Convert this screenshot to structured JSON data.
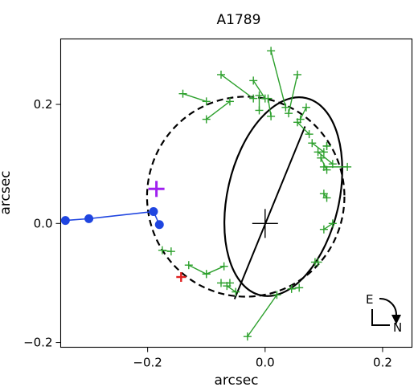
{
  "chart_data": {
    "type": "scatter",
    "title": "A1789",
    "xlabel": "arcsec",
    "ylabel": "arcsec",
    "xlim": [
      -0.348,
      0.25
    ],
    "ylim": [
      -0.208,
      0.31
    ],
    "x_ticks": [
      -0.2,
      0.0,
      0.2
    ],
    "y_ticks": [
      -0.2,
      0.0,
      0.2
    ],
    "x_tick_labels": [
      "−0.2",
      "0.0",
      "0.2"
    ],
    "y_tick_labels": [
      "−0.2",
      "0.0",
      "0.2"
    ],
    "grid": false,
    "compass": {
      "east_label": "E",
      "north_label": "N"
    },
    "colors": {
      "model_points": "#2ca02c",
      "blue_series": "#1f45e0",
      "purple_marker": "#a020f0",
      "red_marker": "#e02020",
      "curves": "#000000"
    },
    "solid_ellipse": {
      "cx": 0.031,
      "cy": 0.045,
      "rx": 0.095,
      "ry": 0.17,
      "tilt_deg": 13
    },
    "dashed_ellipse": {
      "cx": -0.033,
      "cy": 0.045,
      "rx": 0.168,
      "ry": 0.168
    },
    "major_axis": [
      [
        -0.052,
        -0.127
      ],
      [
        0.068,
        0.163
      ]
    ],
    "center_cross": {
      "x": 0.0,
      "y": 0.0
    },
    "green_pairs": [
      {
        "on": [
          -0.16,
          -0.047
        ],
        "off": [
          -0.175,
          -0.045
        ]
      },
      {
        "on": [
          -0.13,
          -0.07
        ],
        "off": [
          -0.1,
          -0.085
        ]
      },
      {
        "on": [
          -0.1,
          -0.085
        ],
        "off": [
          -0.07,
          -0.072
        ]
      },
      {
        "on": [
          -0.06,
          -0.1
        ],
        "off": [
          -0.075,
          -0.1
        ]
      },
      {
        "on": [
          -0.05,
          -0.115
        ],
        "off": [
          -0.065,
          -0.105
        ]
      },
      {
        "on": [
          0.02,
          -0.12
        ],
        "off": [
          -0.03,
          -0.19
        ]
      },
      {
        "on": [
          0.045,
          -0.11
        ],
        "off": [
          0.058,
          -0.108
        ]
      },
      {
        "on": [
          0.085,
          -0.065
        ],
        "off": [
          0.09,
          -0.065
        ]
      },
      {
        "on": [
          0.1,
          -0.01
        ],
        "off": [
          0.115,
          0.0
        ]
      },
      {
        "on": [
          0.1,
          0.05
        ],
        "off": [
          0.105,
          0.043
        ]
      },
      {
        "on": [
          0.075,
          0.15
        ],
        "off": [
          0.055,
          0.17
        ]
      },
      {
        "on": [
          0.08,
          0.135
        ],
        "off": [
          0.1,
          0.12
        ]
      },
      {
        "on": [
          0.09,
          0.12
        ],
        "off": [
          0.115,
          0.1
        ]
      },
      {
        "on": [
          0.095,
          0.11
        ],
        "off": [
          0.105,
          0.09
        ]
      },
      {
        "on": [
          0.1,
          0.095
        ],
        "off": [
          0.14,
          0.095
        ]
      },
      {
        "on": [
          0.105,
          0.13
        ],
        "off": [
          0.105,
          0.13
        ]
      },
      {
        "on": [
          0.06,
          0.175
        ],
        "off": [
          0.07,
          0.195
        ]
      },
      {
        "on": [
          0.035,
          0.195
        ],
        "off": [
          0.01,
          0.29
        ]
      },
      {
        "on": [
          0.04,
          0.185
        ],
        "off": [
          0.055,
          0.25
        ]
      },
      {
        "on": [
          0.0,
          0.21
        ],
        "off": [
          -0.02,
          0.24
        ]
      },
      {
        "on": [
          -0.02,
          0.21
        ],
        "off": [
          -0.075,
          0.25
        ]
      },
      {
        "on": [
          -0.06,
          0.205
        ],
        "off": [
          -0.1,
          0.175
        ]
      },
      {
        "on": [
          0.005,
          0.21
        ],
        "off": [
          0.01,
          0.18
        ]
      },
      {
        "on": [
          -0.1,
          0.205
        ],
        "off": [
          -0.14,
          0.218
        ]
      },
      {
        "on": [
          -0.01,
          0.215
        ],
        "off": [
          -0.01,
          0.19
        ]
      }
    ],
    "blue_series": {
      "x": [
        -0.34,
        -0.3,
        -0.19,
        -0.18
      ],
      "y": [
        0.005,
        0.008,
        0.02,
        -0.002
      ]
    },
    "purple_marker": {
      "x": -0.185,
      "y": 0.058
    },
    "red_marker": {
      "x": -0.143,
      "y": -0.09
    }
  }
}
